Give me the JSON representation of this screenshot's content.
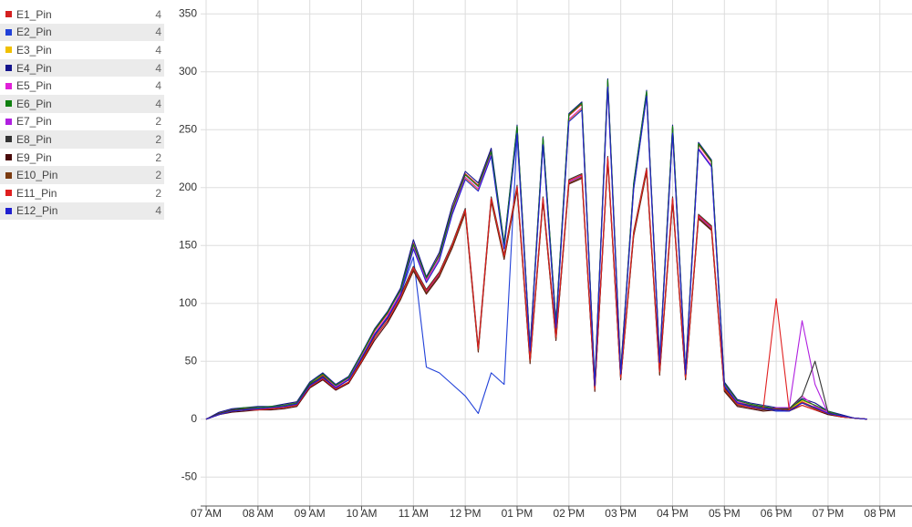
{
  "chart_data": {
    "type": "line",
    "x": [
      7,
      7.25,
      7.5,
      7.75,
      8,
      8.25,
      8.5,
      8.75,
      9,
      9.25,
      9.5,
      9.75,
      10,
      10.25,
      10.5,
      10.75,
      11,
      11.25,
      11.5,
      11.75,
      12,
      12.25,
      12.5,
      12.75,
      13,
      13.25,
      13.5,
      13.75,
      14,
      14.25,
      14.5,
      14.75,
      15,
      15.25,
      15.5,
      15.75,
      16,
      16.25,
      16.5,
      16.75,
      17,
      17.25,
      17.5,
      17.75,
      18,
      18.25,
      18.5,
      18.75,
      19,
      19.25,
      19.5,
      19.75
    ],
    "series": [
      {
        "name": "E1_Pin",
        "count": "4",
        "color": "#d42020",
        "values": [
          0,
          5,
          8,
          9,
          10,
          10,
          12,
          14,
          31,
          38,
          28,
          36,
          56,
          76,
          91,
          112,
          152,
          121,
          142,
          182,
          212,
          202,
          232,
          150,
          252,
          60,
          242,
          82,
          262,
          272,
          30,
          292,
          40,
          202,
          282,
          50,
          252,
          40,
          237,
          222,
          30,
          15,
          12,
          10,
          8,
          8,
          15,
          10,
          6,
          3,
          1,
          0
        ]
      },
      {
        "name": "E2_Pin",
        "count": "4",
        "color": "#2040d8",
        "values": [
          0,
          4,
          7,
          9,
          9,
          10,
          11,
          13,
          29,
          36,
          27,
          34,
          53,
          72,
          88,
          108,
          140,
          45,
          40,
          30,
          20,
          5,
          40,
          30,
          245,
          58,
          238,
          78,
          258,
          268,
          28,
          288,
          38,
          198,
          278,
          48,
          248,
          38,
          233,
          218,
          28,
          14,
          11,
          9,
          7,
          7,
          14,
          9,
          5,
          3,
          1,
          0
        ]
      },
      {
        "name": "E3_Pin",
        "count": "4",
        "color": "#f0c000",
        "values": [
          0,
          5,
          8,
          9,
          10,
          11,
          12,
          15,
          30,
          39,
          29,
          35,
          55,
          74,
          89,
          109,
          148,
          119,
          139,
          178,
          208,
          198,
          228,
          148,
          248,
          59,
          238,
          79,
          258,
          268,
          29,
          288,
          39,
          199,
          279,
          49,
          248,
          39,
          234,
          219,
          29,
          15,
          12,
          10,
          9,
          8,
          16,
          12,
          6,
          3,
          1,
          0
        ]
      },
      {
        "name": "E4_Pin",
        "count": "4",
        "color": "#14148c",
        "values": [
          0,
          6,
          9,
          10,
          11,
          11,
          13,
          15,
          32,
          40,
          30,
          37,
          57,
          78,
          93,
          113,
          155,
          123,
          144,
          185,
          214,
          204,
          234,
          152,
          254,
          62,
          244,
          84,
          264,
          274,
          32,
          294,
          42,
          204,
          284,
          52,
          254,
          42,
          239,
          224,
          32,
          17,
          14,
          12,
          10,
          9,
          18,
          14,
          7,
          4,
          1,
          0
        ]
      },
      {
        "name": "E5_Pin",
        "count": "4",
        "color": "#e020d8",
        "values": [
          0,
          5,
          8,
          9,
          10,
          10,
          12,
          14,
          30,
          37,
          28,
          35,
          54,
          74,
          89,
          109,
          149,
          120,
          139,
          179,
          209,
          199,
          229,
          149,
          249,
          60,
          239,
          80,
          259,
          269,
          30,
          289,
          40,
          200,
          280,
          50,
          249,
          40,
          234,
          219,
          30,
          15,
          12,
          10,
          8,
          8,
          20,
          11,
          6,
          3,
          1,
          0
        ]
      },
      {
        "name": "E6_Pin",
        "count": "4",
        "color": "#108010",
        "values": [
          0,
          5,
          8,
          10,
          10,
          11,
          12,
          14,
          31,
          39,
          29,
          36,
          56,
          77,
          92,
          111,
          151,
          122,
          141,
          181,
          211,
          201,
          231,
          151,
          253,
          61,
          243,
          83,
          263,
          273,
          31,
          293,
          41,
          203,
          283,
          51,
          253,
          41,
          238,
          223,
          31,
          16,
          13,
          11,
          9,
          9,
          17,
          12,
          7,
          3,
          1,
          0
        ]
      },
      {
        "name": "E7_Pin",
        "count": "2",
        "color": "#b020e0",
        "values": [
          0,
          4,
          7,
          8,
          8,
          9,
          10,
          12,
          28,
          35,
          26,
          32,
          50,
          70,
          85,
          105,
          130,
          110,
          125,
          150,
          180,
          60,
          190,
          140,
          200,
          50,
          190,
          70,
          205,
          210,
          25,
          225,
          35,
          160,
          215,
          40,
          190,
          35,
          175,
          165,
          25,
          12,
          10,
          8,
          10,
          10,
          85,
          30,
          5,
          2,
          1,
          0
        ]
      },
      {
        "name": "E8_Pin",
        "count": "2",
        "color": "#333333",
        "values": [
          0,
          5,
          8,
          9,
          9,
          10,
          11,
          13,
          30,
          37,
          27,
          34,
          52,
          72,
          87,
          107,
          132,
          112,
          127,
          152,
          182,
          62,
          192,
          142,
          202,
          52,
          192,
          72,
          207,
          212,
          27,
          227,
          37,
          162,
          217,
          42,
          192,
          37,
          177,
          167,
          27,
          14,
          12,
          10,
          9,
          9,
          20,
          50,
          6,
          2,
          1,
          0
        ]
      },
      {
        "name": "E9_Pin",
        "count": "2",
        "color": "#4a0a0a",
        "values": [
          0,
          4,
          6,
          7,
          8,
          8,
          9,
          11,
          27,
          34,
          25,
          31,
          49,
          68,
          83,
          103,
          128,
          108,
          123,
          148,
          178,
          58,
          188,
          138,
          198,
          48,
          188,
          68,
          203,
          208,
          24,
          223,
          34,
          158,
          213,
          38,
          188,
          34,
          173,
          163,
          24,
          11,
          9,
          7,
          8,
          7,
          12,
          8,
          4,
          2,
          1,
          0
        ]
      },
      {
        "name": "E10_Pin",
        "count": "2",
        "color": "#7a3a10",
        "values": [
          0,
          4,
          7,
          8,
          8,
          9,
          10,
          12,
          28,
          35,
          26,
          32,
          51,
          70,
          85,
          104,
          129,
          109,
          124,
          149,
          179,
          59,
          189,
          139,
          199,
          49,
          189,
          69,
          204,
          209,
          25,
          224,
          35,
          159,
          214,
          39,
          189,
          35,
          174,
          164,
          25,
          12,
          10,
          8,
          9,
          8,
          14,
          9,
          5,
          2,
          1,
          0
        ]
      },
      {
        "name": "E11_Pin",
        "count": "2",
        "color": "#e02020",
        "values": [
          0,
          4,
          7,
          8,
          8,
          9,
          10,
          12,
          28,
          35,
          26,
          32,
          50,
          70,
          85,
          105,
          131,
          111,
          126,
          151,
          181,
          61,
          191,
          141,
          201,
          51,
          191,
          71,
          206,
          211,
          26,
          226,
          36,
          161,
          216,
          41,
          191,
          36,
          176,
          166,
          26,
          13,
          10,
          9,
          104,
          8,
          12,
          8,
          5,
          2,
          1,
          0
        ]
      },
      {
        "name": "E12_Pin",
        "count": "4",
        "color": "#2020d0",
        "values": [
          0,
          4,
          7,
          8,
          9,
          10,
          11,
          13,
          29,
          36,
          27,
          34,
          53,
          73,
          88,
          107,
          147,
          118,
          137,
          177,
          207,
          197,
          227,
          147,
          247,
          59,
          237,
          79,
          257,
          267,
          29,
          287,
          39,
          199,
          279,
          49,
          247,
          39,
          233,
          218,
          29,
          14,
          11,
          9,
          8,
          7,
          14,
          10,
          5,
          3,
          1,
          0
        ]
      }
    ],
    "xlim": [
      6.63,
      20.62
    ],
    "ylim": [
      -75,
      362
    ],
    "xticks": [
      {
        "value": 7,
        "label": "07 AM"
      },
      {
        "value": 8,
        "label": "08 AM"
      },
      {
        "value": 9,
        "label": "09 AM"
      },
      {
        "value": 10,
        "label": "10 AM"
      },
      {
        "value": 11,
        "label": "11 AM"
      },
      {
        "value": 12,
        "label": "12 PM"
      },
      {
        "value": 13,
        "label": "01 PM"
      },
      {
        "value": 14,
        "label": "02 PM"
      },
      {
        "value": 15,
        "label": "03 PM"
      },
      {
        "value": 16,
        "label": "04 PM"
      },
      {
        "value": 17,
        "label": "05 PM"
      },
      {
        "value": 18,
        "label": "06 PM"
      },
      {
        "value": 19,
        "label": "07 PM"
      },
      {
        "value": 20,
        "label": "08 PM"
      }
    ],
    "yticks": [
      -50,
      0,
      50,
      100,
      150,
      200,
      250,
      300,
      350
    ],
    "grid": true
  }
}
